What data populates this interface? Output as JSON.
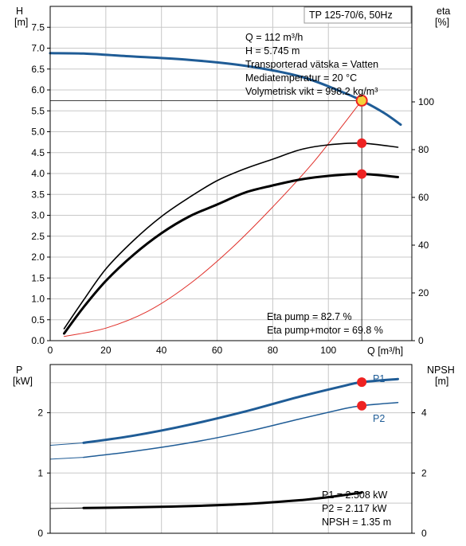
{
  "chart_data": [
    {
      "type": "line",
      "title": "TP 125-70/6, 50Hz",
      "xlabel": "Q [m³/h]",
      "ylabel_left": [
        "H",
        "[m]"
      ],
      "ylabel_right": [
        "eta",
        "[%]"
      ],
      "xlim": [
        0,
        130
      ],
      "ylim": [
        0,
        8
      ],
      "ylim_right": [
        0,
        140
      ],
      "x_ticks": [
        0,
        20,
        40,
        60,
        80,
        100
      ],
      "y_ticks": [
        "0.0",
        "0.5",
        "1.0",
        "1.5",
        "2.0",
        "2.5",
        "3.0",
        "3.5",
        "4.0",
        "4.5",
        "5.0",
        "5.5",
        "6.0",
        "6.5",
        "7.0",
        "7.5"
      ],
      "y_ticks_right": [
        0,
        20,
        40,
        60,
        80,
        100
      ],
      "grid": true,
      "series": [
        {
          "name": "",
          "axis": "left",
          "style": "head",
          "color": "#1f5c96",
          "x": [
            0,
            12,
            30,
            50,
            70,
            90,
            105,
            112,
            120,
            126
          ],
          "y": [
            6.88,
            6.87,
            6.8,
            6.72,
            6.58,
            6.32,
            5.95,
            5.745,
            5.45,
            5.17
          ]
        },
        {
          "name": "",
          "axis": "left",
          "style": "system",
          "color": "#e0302a",
          "x": [
            5,
            20,
            35,
            50,
            65,
            80,
            95,
            112
          ],
          "y": [
            0.1,
            0.3,
            0.7,
            1.35,
            2.2,
            3.2,
            4.3,
            5.745
          ]
        },
        {
          "name": "",
          "axis": "right",
          "style": "eta-pump",
          "color": "#000000",
          "x": [
            5,
            12,
            20,
            30,
            40,
            50,
            60,
            70,
            80,
            90,
            100,
            112,
            125
          ],
          "y": [
            5,
            17,
            30,
            42,
            52,
            60,
            67,
            72,
            76,
            80,
            82,
            82.7,
            81
          ]
        },
        {
          "name": "",
          "axis": "right",
          "style": "eta-motor",
          "color": "#000000",
          "x": [
            5,
            12,
            20,
            30,
            40,
            50,
            60,
            70,
            80,
            90,
            100,
            112,
            125
          ],
          "y": [
            3,
            14,
            25,
            36,
            45,
            52,
            57,
            62,
            65,
            67.5,
            69,
            69.8,
            68.5
          ]
        }
      ],
      "duty_point": {
        "Q": 112,
        "H": 5.745,
        "eta_pump": 82.7,
        "eta_motor": 69.8
      },
      "info_lines": [
        "Q = 112 m³/h",
        "H = 5.745 m",
        "Transporterad vätska = Vatten",
        "Mediatemperatur = 20 °C",
        "Volymetrisk vikt = 998.2 kg/m³"
      ],
      "eta_lines": [
        "Eta pump = 82.7 %",
        "Eta pump+motor = 69.8 %"
      ]
    },
    {
      "type": "line",
      "title": "",
      "ylabel_left": [
        "P",
        "[kW]"
      ],
      "ylabel_right": [
        "NPSH",
        "[m]"
      ],
      "xlim": [
        0,
        130
      ],
      "ylim": [
        0,
        2.8
      ],
      "ylim_right": [
        0,
        5.6
      ],
      "y_ticks": [
        "0",
        "1",
        "2"
      ],
      "y_ticks_right": [
        "0",
        "2",
        "4"
      ],
      "grid": true,
      "series": [
        {
          "name": "P1",
          "axis": "left",
          "color": "#1f5c96",
          "x": [
            0,
            12,
            30,
            50,
            70,
            90,
            105,
            112,
            125
          ],
          "y": [
            1.46,
            1.5,
            1.62,
            1.8,
            2.02,
            2.27,
            2.44,
            2.508,
            2.56
          ]
        },
        {
          "name": "P2",
          "axis": "left",
          "color": "#1f5c96",
          "x": [
            0,
            12,
            30,
            50,
            70,
            90,
            105,
            112,
            125
          ],
          "y": [
            1.23,
            1.26,
            1.36,
            1.5,
            1.68,
            1.9,
            2.06,
            2.117,
            2.17
          ]
        },
        {
          "name": "",
          "axis": "right",
          "style": "npsh",
          "color": "#000000",
          "x": [
            0,
            12,
            30,
            50,
            70,
            90,
            100,
            112
          ],
          "y": [
            0.82,
            0.84,
            0.86,
            0.9,
            0.97,
            1.1,
            1.2,
            1.35
          ]
        }
      ],
      "duty_point": {
        "Q": 112,
        "P1": 2.508,
        "P2": 2.117,
        "NPSH": 1.35
      },
      "info_lines": [
        "P1 = 2.508 kW",
        "P2 = 2.117 kW",
        "NPSH = 1.35 m"
      ]
    }
  ]
}
